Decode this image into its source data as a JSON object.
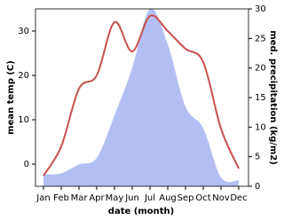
{
  "chart_data": {
    "type": "line-area",
    "x_label": "date (month)",
    "y_label": "mean temp (C)",
    "y2_label": "med. precipitation (kg/m2)",
    "categories": [
      "Jan",
      "Feb",
      "Mar",
      "Apr",
      "May",
      "Jun",
      "Jul",
      "Aug",
      "Sep",
      "Oct",
      "Nov",
      "Dec"
    ],
    "ylim": [
      -5,
      35
    ],
    "yticks": [
      0,
      10,
      20,
      30
    ],
    "y2lim": [
      0,
      30
    ],
    "y2ticks": [
      0,
      5,
      10,
      15,
      20,
      25,
      30
    ],
    "series": [
      {
        "name": "mean temp (C)",
        "color": "#c8504e",
        "kind": "line",
        "values": [
          -2.6,
          4,
          17,
          20,
          32,
          25.4,
          33.4,
          30,
          26,
          23,
          8,
          -1
        ]
      },
      {
        "name": "med. precipitation (kg/m2)",
        "color": "#b3bff2",
        "kind": "area",
        "axis": "y2",
        "values": [
          2,
          2.2,
          3.7,
          4.8,
          12,
          20,
          30,
          24,
          13.5,
          9.8,
          1.5,
          1
        ]
      }
    ]
  }
}
